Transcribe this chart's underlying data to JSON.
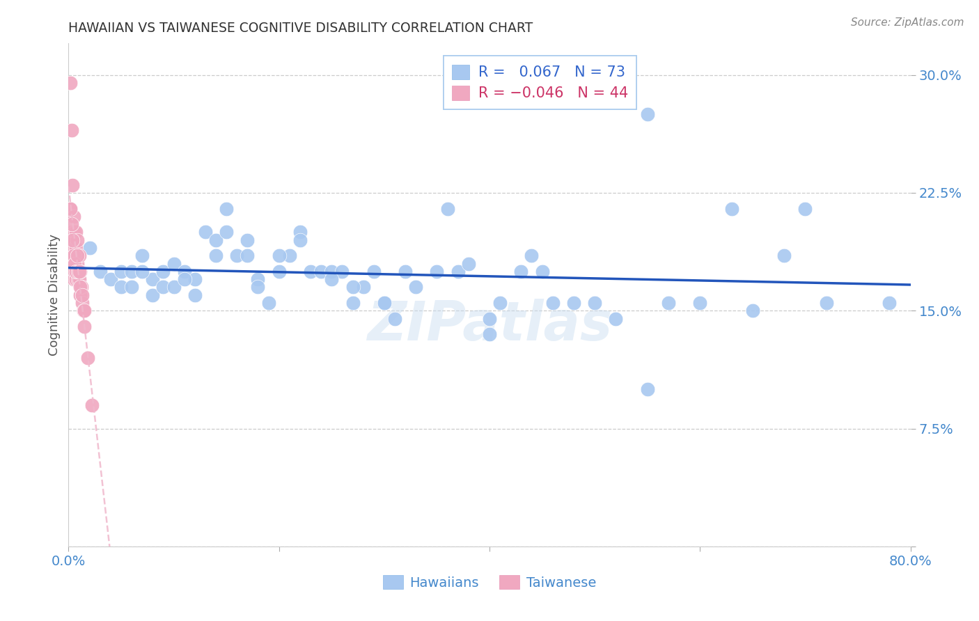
{
  "title": "HAWAIIAN VS TAIWANESE COGNITIVE DISABILITY CORRELATION CHART",
  "source": "Source: ZipAtlas.com",
  "ylabel": "Cognitive Disability",
  "xlim": [
    0.0,
    0.8
  ],
  "ylim": [
    0.0,
    0.32
  ],
  "xticks": [
    0.0,
    0.2,
    0.4,
    0.6,
    0.8
  ],
  "xticklabels": [
    "0.0%",
    "",
    "",
    "",
    "80.0%"
  ],
  "yticks": [
    0.0,
    0.075,
    0.15,
    0.225,
    0.3
  ],
  "yticklabels": [
    "",
    "7.5%",
    "15.0%",
    "22.5%",
    "30.0%"
  ],
  "hawaiian_R": 0.067,
  "hawaiian_N": 73,
  "taiwanese_R": -0.046,
  "taiwanese_N": 44,
  "background_color": "#ffffff",
  "blue_scatter_color": "#a8c8f0",
  "pink_scatter_color": "#f0a8c0",
  "line_blue_color": "#2255bb",
  "line_pink_color": "#f0b8cc",
  "grid_color": "#cccccc",
  "tick_color": "#4488cc",
  "title_color": "#333333",
  "source_color": "#888888",
  "watermark_color": "#c8ddf0",
  "legend_text_color_black": "#333333",
  "legend_num_color": "#3366cc",
  "legend_neg_color": "#cc3366",
  "hawaiian_x": [
    0.02,
    0.03,
    0.04,
    0.05,
    0.06,
    0.07,
    0.08,
    0.09,
    0.1,
    0.11,
    0.12,
    0.13,
    0.14,
    0.15,
    0.16,
    0.17,
    0.18,
    0.19,
    0.2,
    0.21,
    0.22,
    0.23,
    0.24,
    0.25,
    0.26,
    0.27,
    0.28,
    0.29,
    0.3,
    0.31,
    0.33,
    0.35,
    0.37,
    0.38,
    0.4,
    0.41,
    0.43,
    0.45,
    0.46,
    0.48,
    0.5,
    0.52,
    0.55,
    0.57,
    0.6,
    0.63,
    0.65,
    0.68,
    0.7,
    0.72,
    0.05,
    0.06,
    0.07,
    0.08,
    0.09,
    0.1,
    0.11,
    0.12,
    0.14,
    0.15,
    0.17,
    0.18,
    0.2,
    0.22,
    0.25,
    0.27,
    0.3,
    0.32,
    0.36,
    0.4,
    0.44,
    0.55,
    0.78
  ],
  "hawaiian_y": [
    0.19,
    0.175,
    0.17,
    0.175,
    0.175,
    0.185,
    0.17,
    0.175,
    0.18,
    0.175,
    0.17,
    0.2,
    0.195,
    0.215,
    0.185,
    0.195,
    0.17,
    0.155,
    0.175,
    0.185,
    0.2,
    0.175,
    0.175,
    0.175,
    0.175,
    0.155,
    0.165,
    0.175,
    0.155,
    0.145,
    0.165,
    0.175,
    0.175,
    0.18,
    0.145,
    0.155,
    0.175,
    0.175,
    0.155,
    0.155,
    0.155,
    0.145,
    0.275,
    0.155,
    0.155,
    0.215,
    0.15,
    0.185,
    0.215,
    0.155,
    0.165,
    0.165,
    0.175,
    0.16,
    0.165,
    0.165,
    0.17,
    0.16,
    0.185,
    0.2,
    0.185,
    0.165,
    0.185,
    0.195,
    0.17,
    0.165,
    0.155,
    0.175,
    0.215,
    0.135,
    0.185,
    0.1,
    0.155
  ],
  "taiwanese_x": [
    0.002,
    0.002,
    0.002,
    0.003,
    0.003,
    0.003,
    0.004,
    0.004,
    0.004,
    0.005,
    0.005,
    0.005,
    0.006,
    0.006,
    0.006,
    0.007,
    0.007,
    0.007,
    0.008,
    0.008,
    0.009,
    0.009,
    0.01,
    0.01,
    0.011,
    0.011,
    0.012,
    0.013,
    0.014,
    0.015,
    0.002,
    0.003,
    0.004,
    0.005,
    0.006,
    0.007,
    0.008,
    0.009,
    0.01,
    0.011,
    0.013,
    0.015,
    0.018,
    0.022
  ],
  "taiwanese_y": [
    0.295,
    0.215,
    0.19,
    0.265,
    0.2,
    0.185,
    0.23,
    0.195,
    0.18,
    0.21,
    0.195,
    0.17,
    0.2,
    0.19,
    0.175,
    0.2,
    0.19,
    0.17,
    0.195,
    0.18,
    0.185,
    0.17,
    0.185,
    0.17,
    0.175,
    0.16,
    0.165,
    0.155,
    0.15,
    0.14,
    0.215,
    0.205,
    0.195,
    0.185,
    0.18,
    0.175,
    0.185,
    0.175,
    0.175,
    0.165,
    0.16,
    0.15,
    0.12,
    0.09
  ]
}
